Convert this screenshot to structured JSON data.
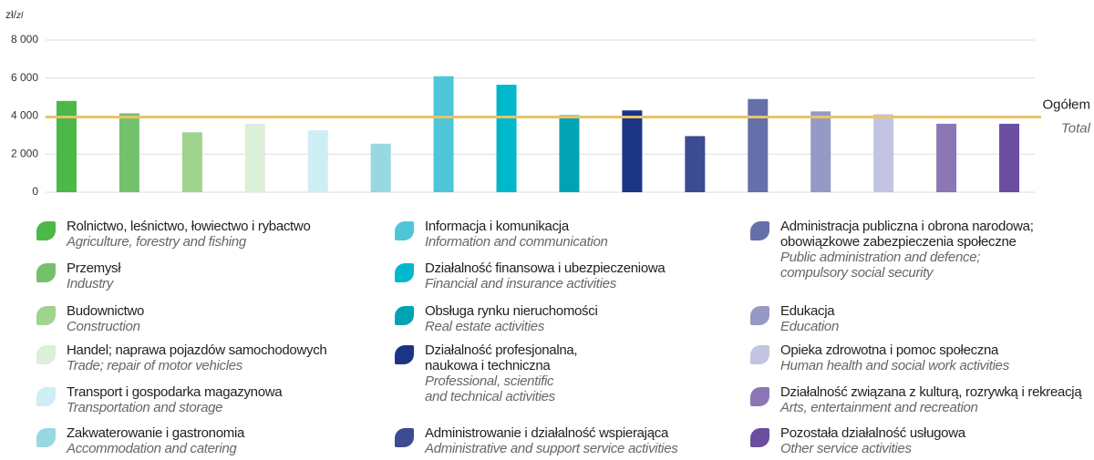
{
  "chart_data": {
    "type": "bar",
    "unit": "zł/",
    "unit_en": "zl",
    "categories": [
      "Rolnictwo, leśnictwo, łowiectwo i rybactwo",
      "Przemysł",
      "Budownictwo",
      "Handel; naprawa pojazdów samochodowych",
      "Transport i gospodarka magazynowa",
      "Zakwaterowanie i gastronomia",
      "Informacja i komunikacja",
      "Działalność finansowa i  ubezpieczeniowa",
      "Obsługa rynku nieruchomości",
      "Działalność profesjonalna,\n  naukowa i  techniczna",
      "Administrowanie i działalność wspierająca",
      "Administracja publiczna i obrona narodowa;\n  obowiązkowe zabezpieczenia społeczne",
      "Edukacja",
      "Opieka zdrowotna i pomoc społeczna",
      "Działalność związana z kulturą, rozrywką i rekreacją",
      "Pozostała działalność usługowa"
    ],
    "categories_en": [
      "Agriculture, forestry and fishing",
      "Industry",
      "Construction",
      "Trade; repair of motor vehicles",
      "Transportation and storage",
      "Accommodation and catering",
      "Information and communication",
      "Financial and insurance activities",
      "Real estate activities",
      "Professional, scientific\n  and technical activities",
      "Administrative and support service activities",
      "Public administration and defence;\n  compulsory social security",
      "Education",
      "Human health and social work activities",
      "Arts, entertainment and recreation",
      "Other service activities"
    ],
    "values": [
      4800,
      4150,
      3150,
      3600,
      3250,
      2550,
      6100,
      5650,
      4050,
      4300,
      2950,
      4900,
      4250,
      4100,
      3600,
      3600
    ],
    "colors": [
      "#4cb848",
      "#74c16b",
      "#9fd38e",
      "#dcefd8",
      "#cdeef4",
      "#98d8e2",
      "#4fc6d8",
      "#00b8cc",
      "#00a3b4",
      "#1c3484",
      "#3d4b92",
      "#6570aa",
      "#9499c6",
      "#c2c4e1",
      "#8b76b6",
      "#6b4ea0"
    ],
    "reference": {
      "value": 3950,
      "label": "Ogółem",
      "label_en": "Total",
      "color": "#e8c36a"
    },
    "ylim": [
      0,
      8000
    ],
    "yticks": [
      0,
      {
        "value": 2000,
        "label": "2 000"
      },
      {
        "value": 4000,
        "label": "4 000"
      },
      {
        "value": 6000,
        "label": "6 000"
      },
      {
        "value": 8000,
        "label": "8 000"
      }
    ],
    "grid": true
  }
}
